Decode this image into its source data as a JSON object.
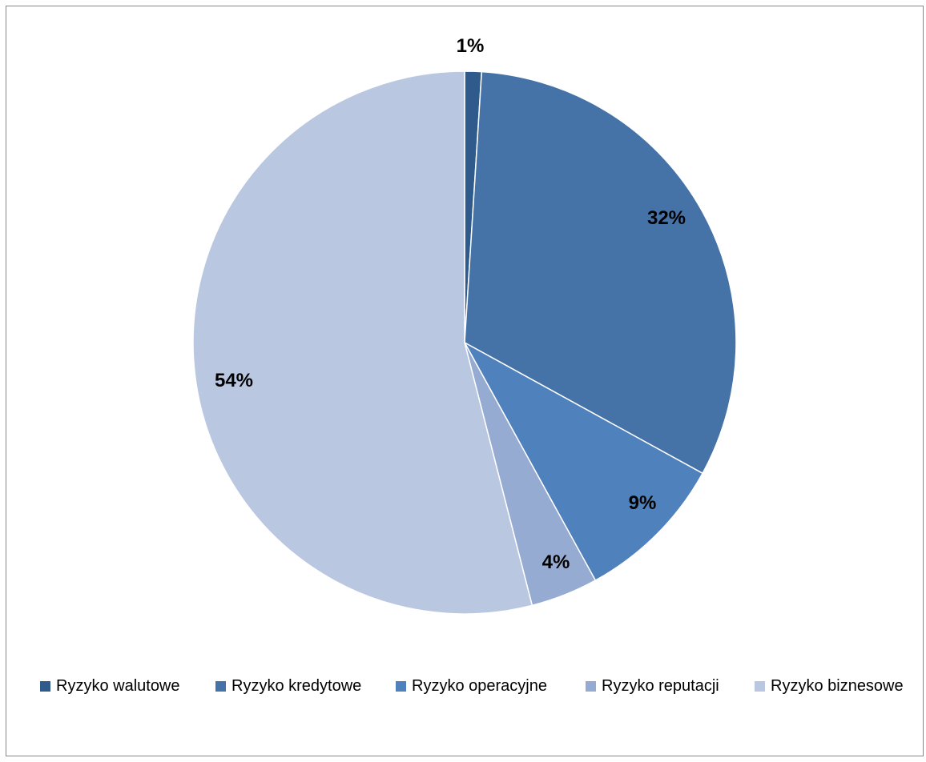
{
  "chart_data": {
    "type": "pie",
    "title": "",
    "categories": [
      "Ryzyko walutowe",
      "Ryzyko kredytowe",
      "Ryzyko operacyjne",
      "Ryzyko reputacji",
      "Ryzyko biznesowe"
    ],
    "values": [
      1,
      32,
      9,
      4,
      54
    ],
    "value_labels": [
      "1%",
      "32%",
      "9%",
      "4%",
      "54%"
    ],
    "colors": [
      "#2E5A8C",
      "#4572A7",
      "#4F81BD",
      "#95ABD2",
      "#B9C7E0"
    ],
    "legend_position": "bottom",
    "start_angle": "top, clockwise"
  }
}
